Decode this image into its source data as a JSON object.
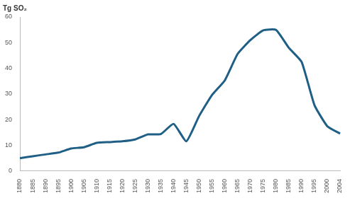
{
  "chart_data": {
    "type": "line",
    "title": "Tg SO₂",
    "categories": [
      "1880",
      "1885",
      "1890",
      "1895",
      "1900",
      "1905",
      "1910",
      "1915",
      "1920",
      "1925",
      "1930",
      "1935",
      "1940",
      "1945",
      "1950",
      "1955",
      "1960",
      "1965",
      "1970",
      "1975",
      "1980",
      "1985",
      "1990",
      "1995",
      "2000",
      "2004"
    ],
    "values": [
      5,
      5.8,
      6.5,
      7.2,
      8.8,
      9.3,
      11,
      11.3,
      11.6,
      12.3,
      14.3,
      14.4,
      18.4,
      11.6,
      21.5,
      29.6,
      35.3,
      45.6,
      51,
      54.8,
      55,
      48,
      42.5,
      25.7,
      17.5,
      14.6
    ],
    "color": "#1f5f86",
    "ylim": [
      0,
      60
    ],
    "yticks": [
      0,
      10,
      20,
      30,
      40,
      50,
      60
    ],
    "grid": false
  }
}
